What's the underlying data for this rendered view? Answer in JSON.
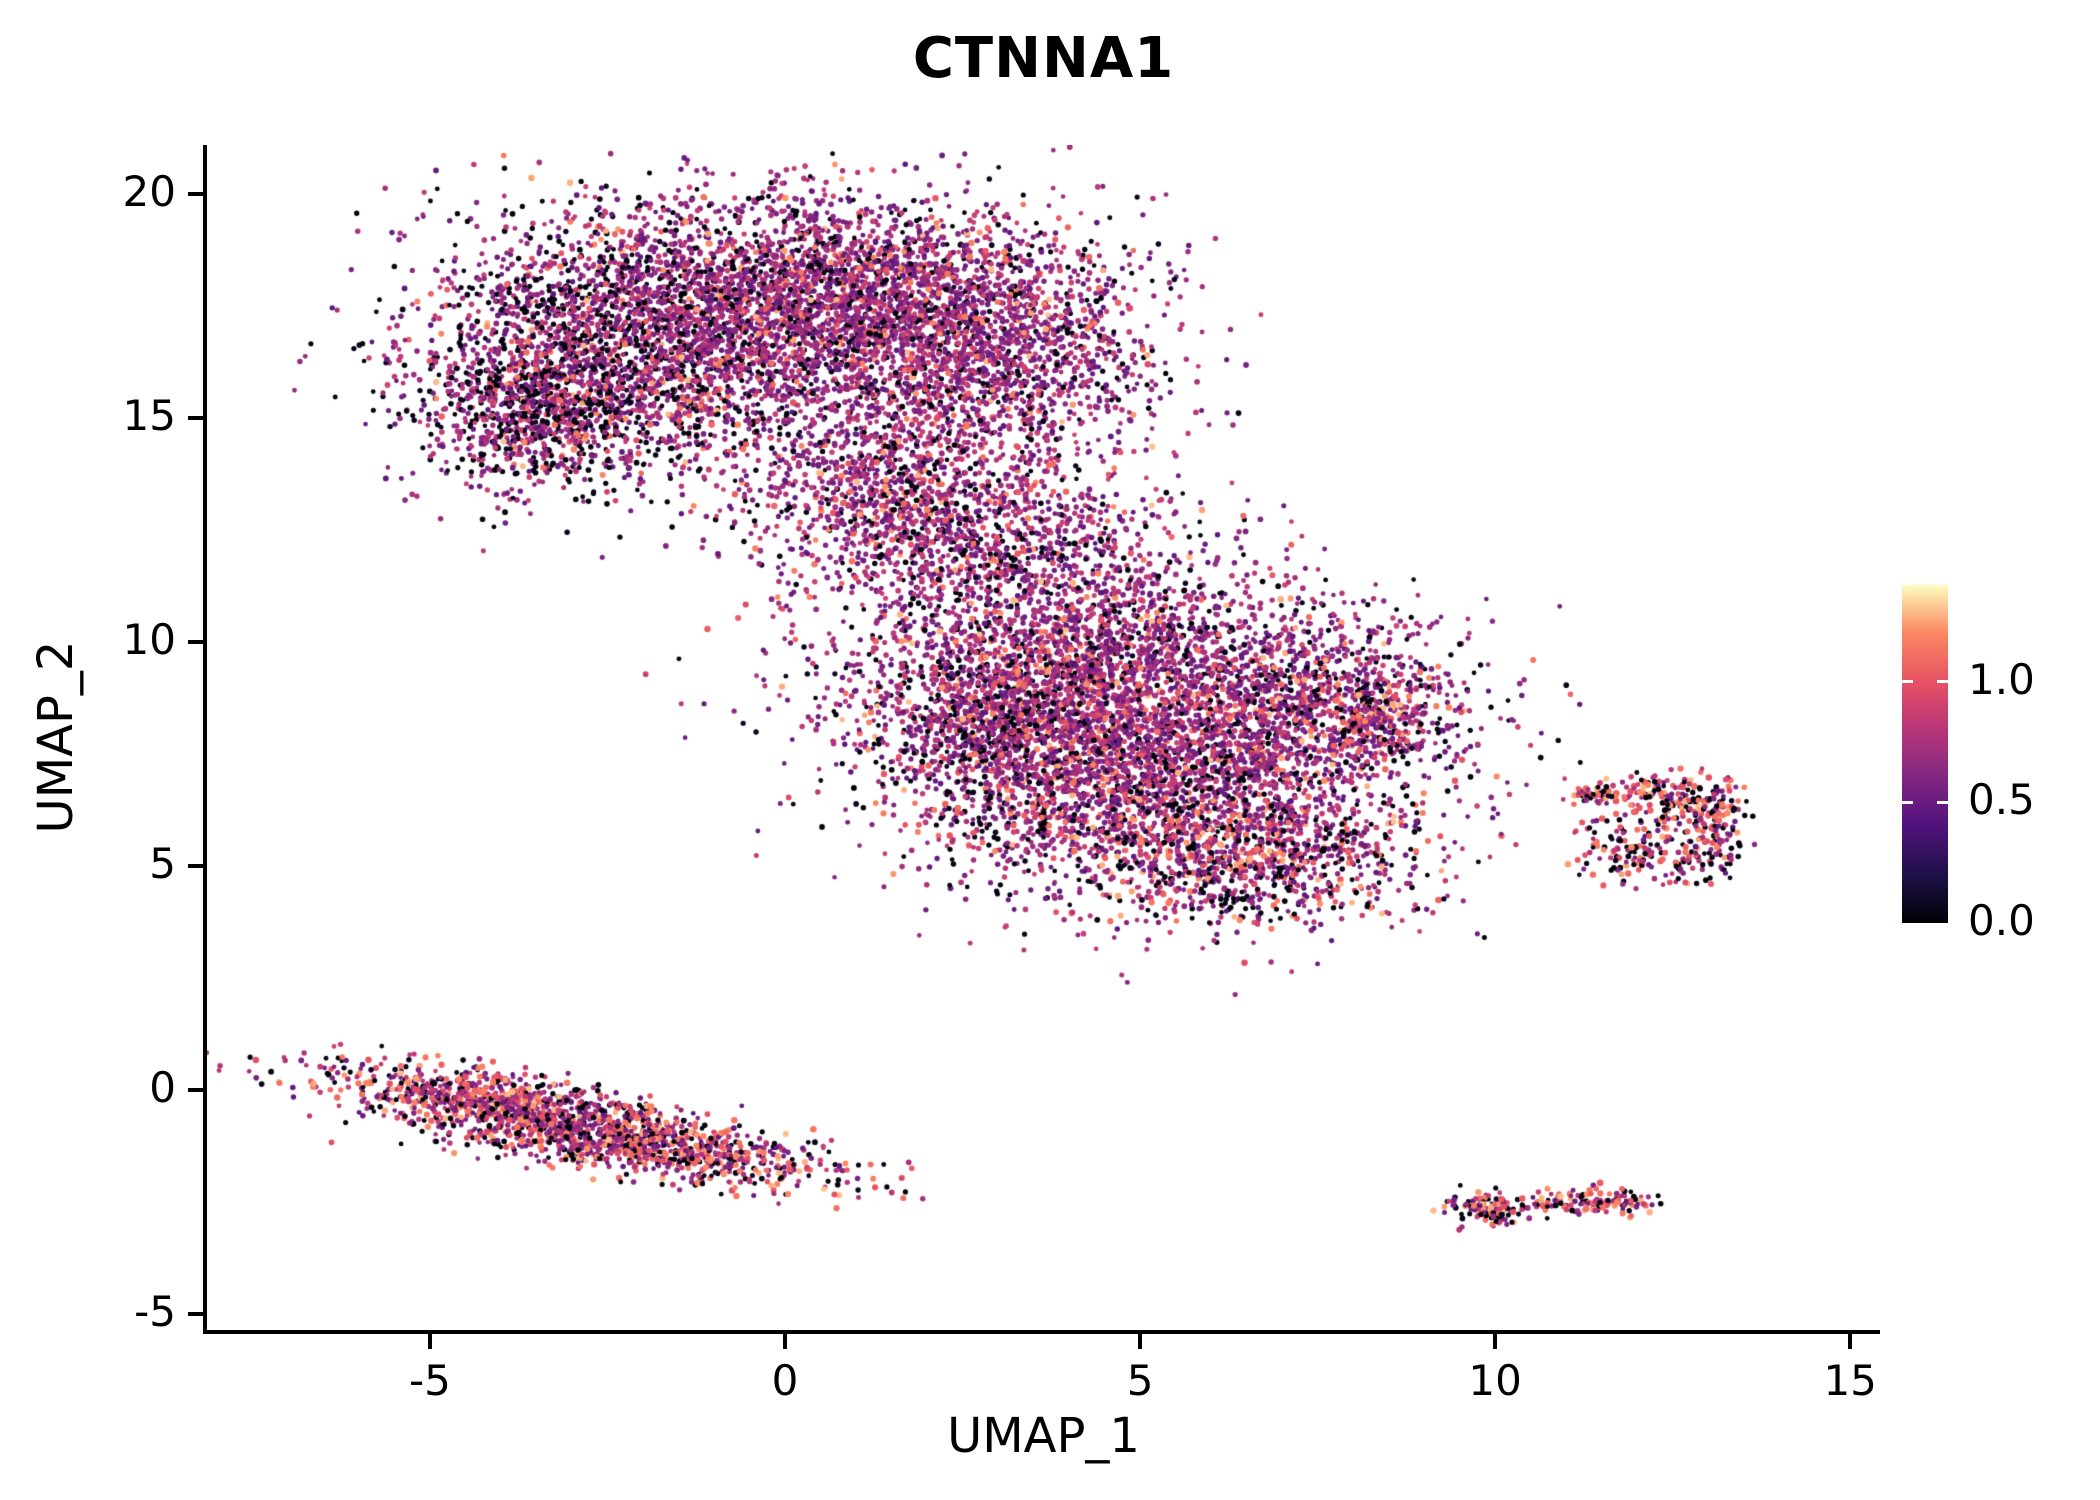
{
  "chart_data": {
    "type": "scatter",
    "title": "CTNNA1",
    "xlabel": "UMAP_1",
    "ylabel": "UMAP_2",
    "xlim": [
      -8.14,
      15.42
    ],
    "ylim": [
      -5.36,
      21.1
    ],
    "xticks": [
      -5,
      0,
      5,
      10,
      15
    ],
    "yticks": [
      -5,
      0,
      5,
      10,
      15,
      20
    ],
    "grid": false,
    "background": "#ffffff",
    "axis_color": "#000000",
    "seed": 42,
    "point_radius": 2.3,
    "colormap": [
      {
        "t": 0.0,
        "hex": "#000004"
      },
      {
        "t": 0.14,
        "hex": "#1d1147"
      },
      {
        "t": 0.29,
        "hex": "#51127c"
      },
      {
        "t": 0.43,
        "hex": "#822681"
      },
      {
        "t": 0.57,
        "hex": "#b63679"
      },
      {
        "t": 0.71,
        "hex": "#e65164"
      },
      {
        "t": 0.86,
        "hex": "#fb8861"
      },
      {
        "t": 1.0,
        "hex": "#fcfdbf"
      }
    ],
    "colorbar": {
      "range": [
        0,
        1.4
      ],
      "tick_values": [
        0.0,
        0.5,
        1.0
      ],
      "labels": [
        "0.0",
        "0.5",
        "1.0"
      ],
      "position": "right"
    },
    "clusters": [
      {
        "name": "upper-left-main",
        "blobs": [
          {
            "cx": -2.3,
            "cy": 16.6,
            "sx": 1.5,
            "sy": 1.5,
            "rot": 0,
            "n": 2400,
            "p0": 0.3,
            "pHigh": 0.07
          },
          {
            "cx": -3.6,
            "cy": 15.3,
            "sx": 0.8,
            "sy": 0.9,
            "rot": 0,
            "n": 700,
            "p0": 0.38,
            "pHigh": 0.05
          },
          {
            "cx": 0.5,
            "cy": 17.6,
            "sx": 1.6,
            "sy": 1.2,
            "rot": 0,
            "n": 2400,
            "p0": 0.16,
            "pHigh": 0.08
          },
          {
            "cx": 2.6,
            "cy": 16.6,
            "sx": 1.4,
            "sy": 1.5,
            "rot": 0,
            "n": 1800,
            "p0": 0.14,
            "pHigh": 0.08
          },
          {
            "cx": 1.5,
            "cy": 13.6,
            "sx": 1.1,
            "sy": 1.1,
            "rot": 0,
            "n": 800,
            "p0": 0.15,
            "pHigh": 0.08
          },
          {
            "cx": 3.0,
            "cy": 12.3,
            "sx": 1.2,
            "sy": 0.9,
            "rot": 0,
            "n": 500,
            "p0": 0.15,
            "pHigh": 0.08
          },
          {
            "cx": 2.4,
            "cy": 12.2,
            "sx": 1.6,
            "sy": 1.1,
            "rot": 0,
            "n": 350,
            "p0": 0.2,
            "pHigh": 0.08
          }
        ]
      },
      {
        "name": "central-main",
        "blobs": [
          {
            "cx": 4.5,
            "cy": 9.4,
            "sx": 1.8,
            "sy": 1.3,
            "rot": 0,
            "n": 2400,
            "p0": 0.16,
            "pHigh": 0.09
          },
          {
            "cx": 5.4,
            "cy": 7.0,
            "sx": 1.8,
            "sy": 1.4,
            "rot": 0,
            "n": 2400,
            "p0": 0.17,
            "pHigh": 0.11
          },
          {
            "cx": 3.0,
            "cy": 8.1,
            "sx": 1.0,
            "sy": 1.2,
            "rot": 0,
            "n": 900,
            "p0": 0.2,
            "pHigh": 0.08
          },
          {
            "cx": 6.4,
            "cy": 5.2,
            "sx": 1.3,
            "sy": 0.8,
            "rot": 0,
            "n": 800,
            "p0": 0.28,
            "pHigh": 0.16
          },
          {
            "cx": 7.8,
            "cy": 8.6,
            "sx": 1.0,
            "sy": 0.9,
            "rot": 0,
            "n": 600,
            "p0": 0.18,
            "pHigh": 0.1
          },
          {
            "cx": 8.5,
            "cy": 8.2,
            "sx": 0.4,
            "sy": 0.4,
            "rot": 0,
            "n": 150,
            "p0": 0.2,
            "pHigh": 0.25
          }
        ]
      },
      {
        "name": "lower-left-streak",
        "blobs": [
          {
            "cx": -3.9,
            "cy": -0.3,
            "sx": 1.4,
            "sy": 0.3,
            "rot": -14,
            "n": 900,
            "p0": 0.2,
            "pHigh": 0.28
          },
          {
            "cx": -2.1,
            "cy": -1.25,
            "sx": 1.5,
            "sy": 0.33,
            "rot": -13,
            "n": 900,
            "p0": 0.22,
            "pHigh": 0.28
          }
        ]
      },
      {
        "name": "right-small-ring",
        "blobs": [
          {
            "cx": 12.5,
            "cy": 6.55,
            "sx": 0.5,
            "sy": 0.27,
            "rot": 0,
            "n": 160,
            "p0": 0.28,
            "pHigh": 0.33
          },
          {
            "cx": 12.0,
            "cy": 5.35,
            "sx": 0.4,
            "sy": 0.35,
            "rot": 0,
            "n": 130,
            "p0": 0.3,
            "pHigh": 0.3
          },
          {
            "cx": 13.0,
            "cy": 5.3,
            "sx": 0.3,
            "sy": 0.4,
            "rot": 0,
            "n": 90,
            "p0": 0.3,
            "pHigh": 0.3
          },
          {
            "cx": 13.15,
            "cy": 6.2,
            "sx": 0.2,
            "sy": 0.3,
            "rot": 0,
            "n": 70,
            "p0": 0.28,
            "pHigh": 0.3
          },
          {
            "cx": 11.45,
            "cy": 6.6,
            "sx": 0.16,
            "sy": 0.12,
            "rot": 0,
            "n": 40,
            "p0": 0.3,
            "pHigh": 0.25
          }
        ]
      },
      {
        "name": "bottom-right-small",
        "blobs": [
          {
            "cx": 9.9,
            "cy": -2.62,
            "sx": 0.32,
            "sy": 0.18,
            "rot": -8,
            "n": 130,
            "p0": 0.3,
            "pHigh": 0.3
          },
          {
            "cx": 11.5,
            "cy": -2.5,
            "sx": 0.36,
            "sy": 0.15,
            "rot": -5,
            "n": 110,
            "p0": 0.28,
            "pHigh": 0.32
          },
          {
            "cx": 10.65,
            "cy": -2.55,
            "sx": 0.08,
            "sy": 0.06,
            "rot": 0,
            "n": 10,
            "p0": 0.3,
            "pHigh": 0.3
          }
        ]
      }
    ],
    "extra_points": [
      {
        "x": 6.85,
        "y": 3.6,
        "v": 1.15
      }
    ]
  }
}
